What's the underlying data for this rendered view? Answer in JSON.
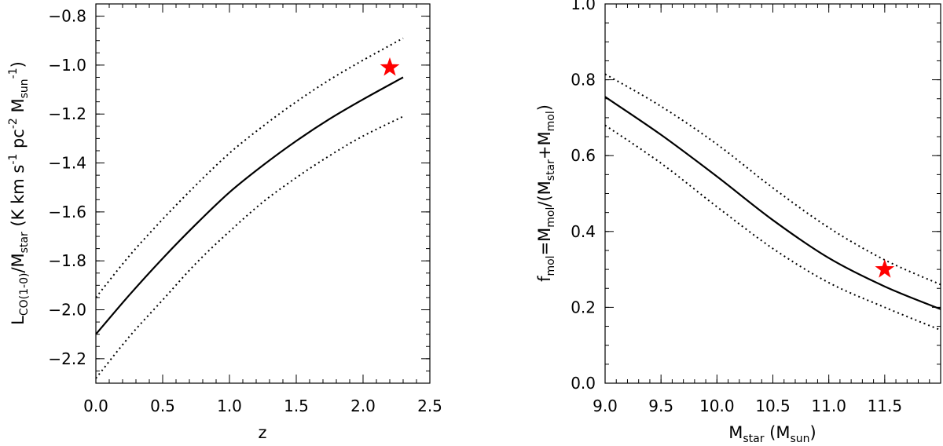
{
  "chart_data": [
    {
      "type": "line",
      "xlabel": "z",
      "ylabel": "L_CO(1-0)/M_star (K km s^-1 pc^-2 M_sun^-1)",
      "xlim": [
        0.0,
        2.5
      ],
      "ylim": [
        -2.3,
        -0.75
      ],
      "x_ticks": [
        "0.0",
        "0.5",
        "1.0",
        "1.5",
        "2.0",
        "2.5"
      ],
      "y_ticks": [
        "-2.2",
        "-2.0",
        "-1.8",
        "-1.6",
        "-1.4",
        "-1.2",
        "-1.0",
        "-0.8"
      ],
      "x": [
        0.0,
        0.25,
        0.5,
        0.75,
        1.0,
        1.25,
        1.5,
        1.75,
        2.0,
        2.3
      ],
      "series": [
        {
          "style": "solid",
          "values": [
            -2.1,
            -1.94,
            -1.79,
            -1.65,
            -1.52,
            -1.41,
            -1.31,
            -1.22,
            -1.14,
            -1.05
          ]
        },
        {
          "style": "dotted",
          "values": [
            -1.95,
            -1.78,
            -1.63,
            -1.49,
            -1.36,
            -1.25,
            -1.15,
            -1.06,
            -0.98,
            -0.89
          ]
        },
        {
          "style": "dotted",
          "values": [
            -2.28,
            -2.11,
            -1.96,
            -1.81,
            -1.68,
            -1.56,
            -1.46,
            -1.37,
            -1.29,
            -1.21
          ]
        }
      ],
      "markers": [
        {
          "symbol": "star",
          "color": "#ff0000",
          "x": 2.2,
          "y": -1.01
        }
      ]
    },
    {
      "type": "line",
      "xlabel": "M_star (M_sun)",
      "ylabel": "f_mol=M_mol/(M_star+M_mol)",
      "xlim": [
        9.0,
        12.0
      ],
      "ylim": [
        0.0,
        1.0
      ],
      "x_ticks": [
        "9.0",
        "9.5",
        "10.0",
        "10.5",
        "11.0",
        "11.5"
      ],
      "y_ticks": [
        "0.0",
        "0.2",
        "0.4",
        "0.6",
        "0.8",
        "1.0"
      ],
      "x": [
        9.0,
        9.5,
        10.0,
        10.5,
        11.0,
        11.5,
        12.0
      ],
      "series": [
        {
          "style": "solid",
          "values": [
            0.755,
            0.655,
            0.545,
            0.43,
            0.33,
            0.255,
            0.195
          ]
        },
        {
          "style": "dotted",
          "values": [
            0.815,
            0.73,
            0.63,
            0.515,
            0.41,
            0.325,
            0.26
          ]
        },
        {
          "style": "dotted",
          "values": [
            0.68,
            0.58,
            0.465,
            0.355,
            0.265,
            0.2,
            0.14
          ]
        }
      ],
      "markers": [
        {
          "symbol": "star",
          "color": "#ff0000",
          "x": 11.5,
          "y": 0.3
        }
      ]
    }
  ],
  "labels": {
    "left_y": {
      "base": "L",
      "sub1": "CO(1-0)",
      "mid": "/M",
      "sub2": "star",
      "units": " (K km s",
      "sup1": "-1",
      "units2": " pc",
      "sup2": "-2",
      "units3": " M",
      "sub3": "sun",
      "sup3": "-1",
      "close": ")"
    },
    "left_x": "z",
    "right_y": {
      "base": "f",
      "sub1": "mol",
      "mid": "=M",
      "sub2": "mol",
      "mid2": "/(M",
      "sub3": "star",
      "mid3": "+M",
      "sub4": "mol",
      "close": ")"
    },
    "right_x": {
      "base": "M",
      "sub1": "star",
      "mid": " (M",
      "sub2": "sun",
      "close": ")"
    }
  }
}
